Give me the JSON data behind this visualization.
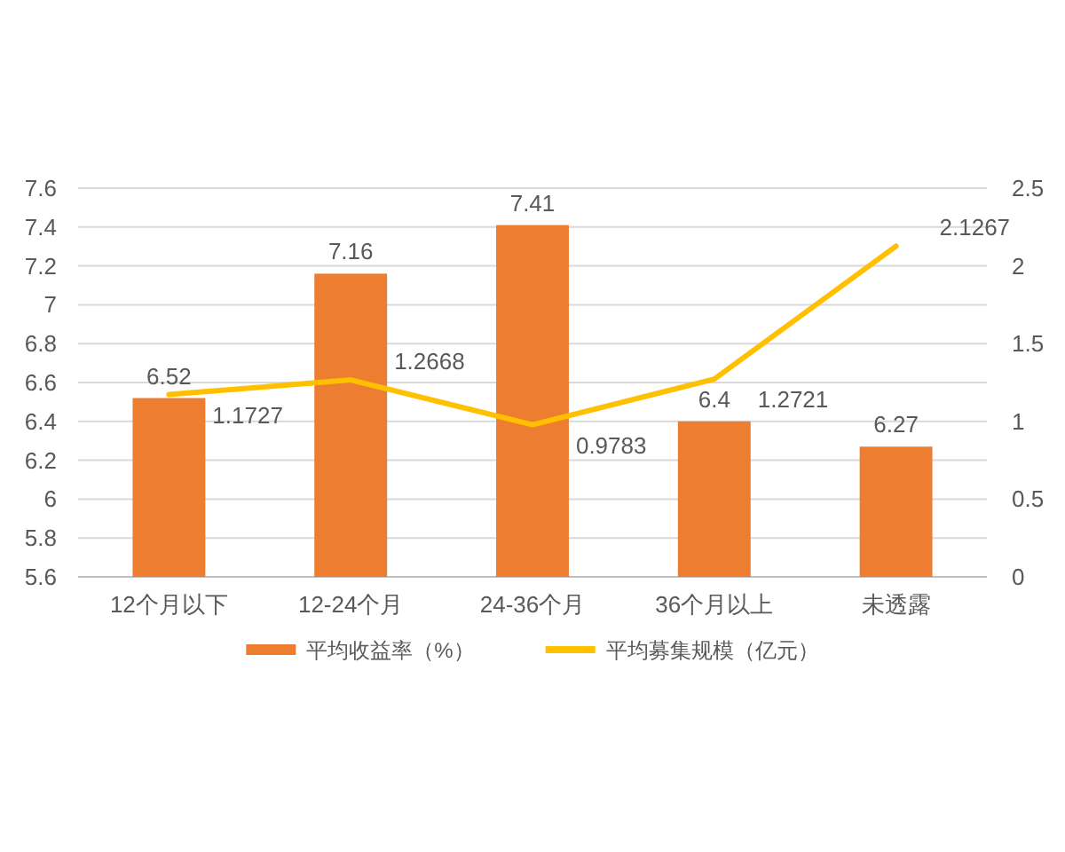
{
  "chart_data": {
    "type": "bar",
    "categories": [
      "12个月以下",
      "12-24个月",
      "24-36个月",
      "36个月以上",
      "未透露"
    ],
    "series": [
      {
        "name": "平均收益率（%）",
        "color": "#ed7d31",
        "values": [
          6.52,
          7.16,
          7.41,
          6.4,
          6.27
        ]
      },
      {
        "name": "平均募集规模（亿元）",
        "type": "line",
        "axis": "y2",
        "color": "#ffc000",
        "values": [
          1.1727,
          1.2668,
          0.9783,
          1.2721,
          2.1267
        ]
      }
    ],
    "ylim": [
      5.6,
      7.6
    ],
    "yticks": [
      5.6,
      5.8,
      6,
      6.2,
      6.4,
      6.6,
      6.8,
      7,
      7.2,
      7.4,
      7.6
    ],
    "y2lim": [
      0,
      2.5
    ],
    "y2ticks": [
      0,
      0.5,
      1,
      1.5,
      2,
      2.5
    ],
    "grid": "y",
    "legend": "bottom",
    "data_labels": true
  }
}
